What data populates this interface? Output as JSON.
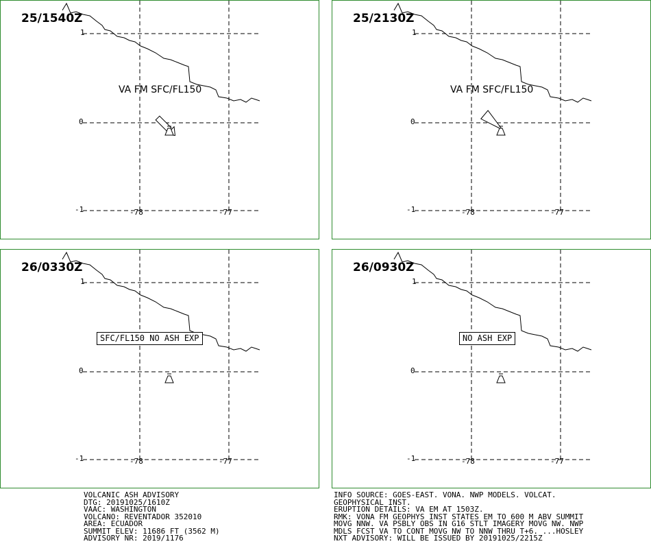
{
  "panels": [
    {
      "time": "25/1540Z",
      "label": "VA FM SFC/FL150",
      "boxed": false
    },
    {
      "time": "25/2130Z",
      "label": "VA FM SFC/FL150",
      "boxed": false
    },
    {
      "time": "26/0330Z",
      "label": "SFC/FL150 NO ASH EXP",
      "boxed": true
    },
    {
      "time": "26/0930Z",
      "label": "NO ASH EXP",
      "boxed": true
    }
  ],
  "axes": {
    "lat_labels": [
      "1",
      "0",
      "-1"
    ],
    "lon_labels": [
      "-78",
      "-77"
    ]
  },
  "advisory_left": [
    "VOLCANIC ASH ADVISORY",
    "DTG: 20191025/1610Z",
    "VAAC: WASHINGTON",
    "VOLCANO: REVENTADOR 352010",
    "AREA: ECUADOR",
    "SUMMIT ELEV: 11686 FT (3562 M)",
    "ADVISORY NR: 2019/1176"
  ],
  "advisory_right": [
    "INFO SOURCE: GOES-EAST. VONA. NWP MODELS. VOLCAT.",
    "GEOPHYSICAL INST.",
    "ERUPTION DETAILS: VA EM AT 1503Z.",
    "RMK: VONA FM GEOPHYS INST STATES EM TO 600 M ABV SUMMIT",
    "MOVG NNW. VA PSBLY OBS IN G16 STLT IMAGERY MOVG NW. NWP",
    "MDLS FCST VA TO CONT MOVG NW TO NNW THRU T+6. ...HOSLEY",
    "NXT ADVISORY: WILL BE ISSUED BY 20191025/2215Z"
  ],
  "colors": {
    "frame": "#2e8b2e",
    "ink": "#000000"
  }
}
